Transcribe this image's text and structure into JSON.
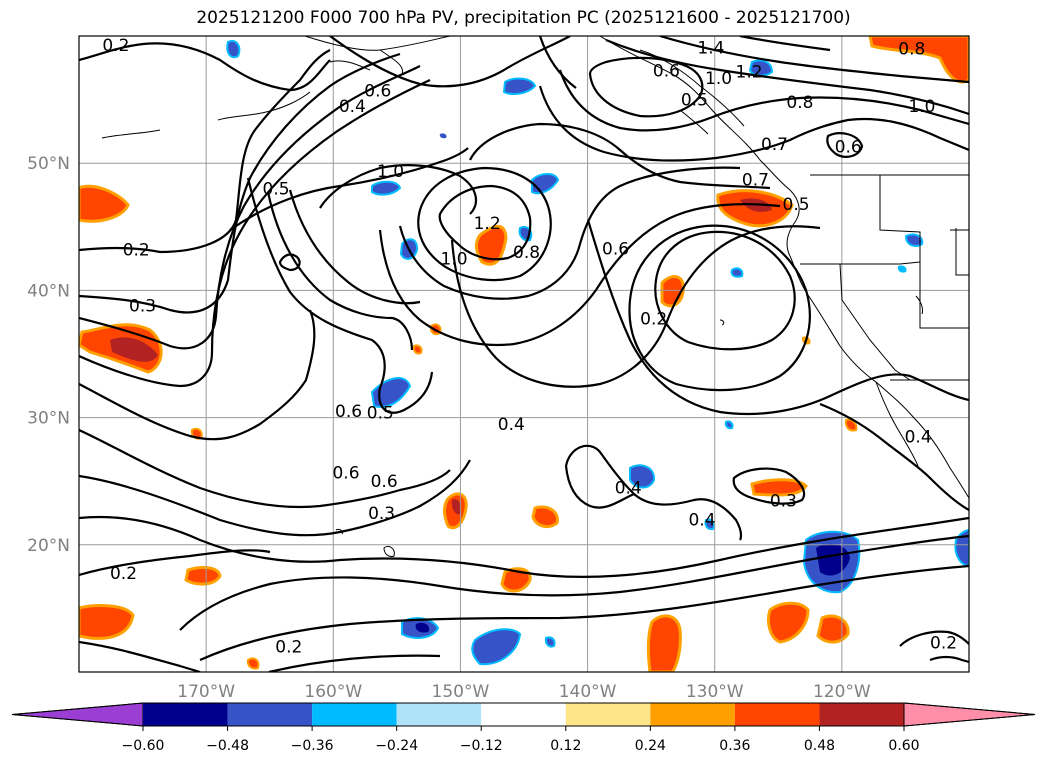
{
  "title": "2025121200 F000 700 hPa PV, precipitation PC (2025121600 - 2025121700)",
  "map": {
    "lon_range": [
      -180,
      -110
    ],
    "lat_range": [
      10,
      60
    ],
    "lon_ticks": [
      {
        "value": -170,
        "label": "170°W"
      },
      {
        "value": -160,
        "label": "160°W"
      },
      {
        "value": -150,
        "label": "150°W"
      },
      {
        "value": -140,
        "label": "140°W"
      },
      {
        "value": -130,
        "label": "130°W"
      },
      {
        "value": -120,
        "label": "120°W"
      }
    ],
    "lat_ticks": [
      {
        "value": 20,
        "label": "20°N"
      },
      {
        "value": 30,
        "label": "30°N"
      },
      {
        "value": 40,
        "label": "40°N"
      },
      {
        "value": 50,
        "label": "50°N"
      }
    ],
    "grid": true,
    "contour_labels": [
      {
        "text": "0.2",
        "lon": -177.1,
        "lat": 59.3
      },
      {
        "text": "0.2",
        "lon": -175.5,
        "lat": 43.2
      },
      {
        "text": "0.3",
        "lon": -175.0,
        "lat": 38.8
      },
      {
        "text": "0.4",
        "lon": -158.5,
        "lat": 54.5
      },
      {
        "text": "0.5",
        "lon": -164.5,
        "lat": 48.0
      },
      {
        "text": "0.6",
        "lon": -156.5,
        "lat": 55.7
      },
      {
        "text": "1.0",
        "lon": -155.5,
        "lat": 49.4
      },
      {
        "text": "1.2",
        "lon": -147.9,
        "lat": 45.3
      },
      {
        "text": "1.0",
        "lon": -150.5,
        "lat": 42.5
      },
      {
        "text": "0.8",
        "lon": -144.8,
        "lat": 43.0
      },
      {
        "text": "1.4",
        "lon": -130.3,
        "lat": 59.1
      },
      {
        "text": "1.2",
        "lon": -127.3,
        "lat": 57.2
      },
      {
        "text": "1.0",
        "lon": -129.7,
        "lat": 56.7
      },
      {
        "text": "0.6",
        "lon": -133.8,
        "lat": 57.3
      },
      {
        "text": "0.5",
        "lon": -131.6,
        "lat": 55.0
      },
      {
        "text": "0.8",
        "lon": -123.3,
        "lat": 54.8
      },
      {
        "text": "0.8",
        "lon": -114.5,
        "lat": 59.0
      },
      {
        "text": "1.0",
        "lon": -113.7,
        "lat": 54.5
      },
      {
        "text": "0.7",
        "lon": -125.3,
        "lat": 51.5
      },
      {
        "text": "0.6",
        "lon": -119.5,
        "lat": 51.3
      },
      {
        "text": "0.7",
        "lon": -126.8,
        "lat": 48.7
      },
      {
        "text": "0.5",
        "lon": -123.6,
        "lat": 46.8
      },
      {
        "text": "0.6",
        "lon": -137.8,
        "lat": 43.3
      },
      {
        "text": "0.2",
        "lon": -134.8,
        "lat": 37.8
      },
      {
        "text": "0.6",
        "lon": -158.8,
        "lat": 30.5
      },
      {
        "text": "0.5",
        "lon": -156.3,
        "lat": 30.4
      },
      {
        "text": "0.4",
        "lon": -146.0,
        "lat": 29.5
      },
      {
        "text": "0.6",
        "lon": -159.0,
        "lat": 25.7
      },
      {
        "text": "0.6",
        "lon": -156.0,
        "lat": 25.0
      },
      {
        "text": "0.3",
        "lon": -156.2,
        "lat": 22.5
      },
      {
        "text": "0.4",
        "lon": -136.8,
        "lat": 24.5
      },
      {
        "text": "0.4",
        "lon": -131.0,
        "lat": 22.0
      },
      {
        "text": "0.3",
        "lon": -124.6,
        "lat": 23.5
      },
      {
        "text": "0.2",
        "lon": -176.5,
        "lat": 17.8
      },
      {
        "text": "0.2",
        "lon": -163.5,
        "lat": 12.0
      },
      {
        "text": "0.2",
        "lon": -112.0,
        "lat": 12.3
      },
      {
        "text": "0.4",
        "lon": -114.0,
        "lat": 28.5
      }
    ]
  },
  "colorbar": {
    "ticks": [
      "−0.60",
      "−0.48",
      "−0.36",
      "−0.24",
      "−0.12",
      "0.12",
      "0.24",
      "0.36",
      "0.48",
      "0.60"
    ],
    "colors": [
      "#9b3fd4",
      "#00008c",
      "#3654c8",
      "#00bbff",
      "#b0e2f8",
      "#ffffff",
      "#fde68a",
      "#ffa000",
      "#ff4500",
      "#b22222",
      "#ff8fa9"
    ]
  }
}
